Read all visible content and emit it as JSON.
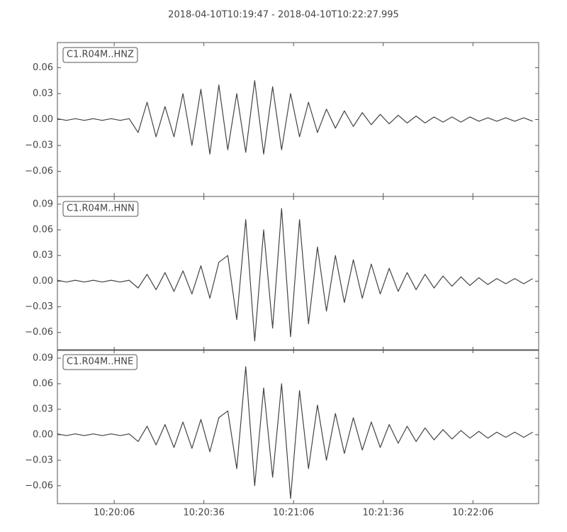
{
  "title": "2018-04-10T10:19:47  -  2018-04-10T10:22:27.995",
  "xlim": [
    "10:19:47",
    "10:22:27.995"
  ],
  "xticks": [
    "10:20:06",
    "10:20:36",
    "10:21:06",
    "10:21:36",
    "10:22:06"
  ],
  "chart_data": [
    {
      "type": "line",
      "label": "C1.R04M..HNZ",
      "color": "#444444",
      "ylim": [
        -0.089,
        0.089
      ],
      "yticks": [
        {
          "value": -0.06,
          "label": "−0.06"
        },
        {
          "value": -0.03,
          "label": "−0.03"
        },
        {
          "value": 0,
          "label": "0.00"
        },
        {
          "value": 0.03,
          "label": "0.03"
        },
        {
          "value": 0.06,
          "label": "0.06"
        }
      ],
      "x": [
        "10:19:47",
        "10:19:50",
        "10:19:53",
        "10:19:56",
        "10:19:59",
        "10:20:02",
        "10:20:05",
        "10:20:08",
        "10:20:11",
        "10:20:14",
        "10:20:17",
        "10:20:20",
        "10:20:23",
        "10:20:26",
        "10:20:29",
        "10:20:32",
        "10:20:35",
        "10:20:38",
        "10:20:41",
        "10:20:44",
        "10:20:47",
        "10:20:50",
        "10:20:53",
        "10:20:56",
        "10:20:59",
        "10:21:02",
        "10:21:05",
        "10:21:08",
        "10:21:11",
        "10:21:14",
        "10:21:17",
        "10:21:20",
        "10:21:23",
        "10:21:26",
        "10:21:29",
        "10:21:32",
        "10:21:35",
        "10:21:38",
        "10:21:41",
        "10:21:44",
        "10:21:47",
        "10:21:50",
        "10:21:53",
        "10:21:56",
        "10:21:59",
        "10:22:02",
        "10:22:05",
        "10:22:08",
        "10:22:11",
        "10:22:14",
        "10:22:17",
        "10:22:20",
        "10:22:23",
        "10:22:26"
      ],
      "values": [
        0.001,
        -0.001,
        0.001,
        -0.001,
        0.001,
        -0.001,
        0.001,
        -0.001,
        0.001,
        -0.015,
        0.02,
        -0.02,
        0.015,
        -0.02,
        0.03,
        -0.03,
        0.035,
        -0.04,
        0.04,
        -0.035,
        0.03,
        -0.038,
        0.045,
        -0.04,
        0.038,
        -0.035,
        0.03,
        -0.02,
        0.02,
        -0.015,
        0.012,
        -0.01,
        0.01,
        -0.008,
        0.008,
        -0.006,
        0.006,
        -0.005,
        0.005,
        -0.004,
        0.004,
        -0.004,
        0.003,
        -0.003,
        0.003,
        -0.003,
        0.003,
        -0.002,
        0.002,
        -0.002,
        0.002,
        -0.002,
        0.002,
        -0.002
      ]
    },
    {
      "type": "line",
      "label": "C1.R04M..HNN",
      "color": "#444444",
      "ylim": [
        -0.081,
        0.099
      ],
      "yticks": [
        {
          "value": -0.06,
          "label": "−0.06"
        },
        {
          "value": -0.03,
          "label": "−0.03"
        },
        {
          "value": 0,
          "label": "0.00"
        },
        {
          "value": 0.03,
          "label": "0.03"
        },
        {
          "value": 0.06,
          "label": "0.06"
        },
        {
          "value": 0.09,
          "label": "0.09"
        }
      ],
      "x": [
        "10:19:47",
        "10:19:50",
        "10:19:53",
        "10:19:56",
        "10:19:59",
        "10:20:02",
        "10:20:05",
        "10:20:08",
        "10:20:11",
        "10:20:14",
        "10:20:17",
        "10:20:20",
        "10:20:23",
        "10:20:26",
        "10:20:29",
        "10:20:32",
        "10:20:35",
        "10:20:38",
        "10:20:41",
        "10:20:44",
        "10:20:47",
        "10:20:50",
        "10:20:53",
        "10:20:56",
        "10:20:59",
        "10:21:02",
        "10:21:05",
        "10:21:08",
        "10:21:11",
        "10:21:14",
        "10:21:17",
        "10:21:20",
        "10:21:23",
        "10:21:26",
        "10:21:29",
        "10:21:32",
        "10:21:35",
        "10:21:38",
        "10:21:41",
        "10:21:44",
        "10:21:47",
        "10:21:50",
        "10:21:53",
        "10:21:56",
        "10:21:59",
        "10:22:02",
        "10:22:05",
        "10:22:08",
        "10:22:11",
        "10:22:14",
        "10:22:17",
        "10:22:20",
        "10:22:23",
        "10:22:26"
      ],
      "values": [
        0.001,
        -0.001,
        0.001,
        -0.001,
        0.001,
        -0.001,
        0.001,
        -0.001,
        0.001,
        -0.008,
        0.008,
        -0.01,
        0.01,
        -0.012,
        0.012,
        -0.015,
        0.018,
        -0.02,
        0.022,
        0.03,
        -0.045,
        0.072,
        -0.07,
        0.06,
        -0.055,
        0.085,
        -0.065,
        0.072,
        -0.05,
        0.04,
        -0.035,
        0.03,
        -0.025,
        0.025,
        -0.02,
        0.02,
        -0.015,
        0.015,
        -0.012,
        0.01,
        -0.01,
        0.008,
        -0.008,
        0.006,
        -0.006,
        0.005,
        -0.005,
        0.004,
        -0.004,
        0.003,
        -0.003,
        0.003,
        -0.003,
        0.003
      ]
    },
    {
      "type": "line",
      "label": "C1.R04M..HNE",
      "color": "#444444",
      "ylim": [
        -0.081,
        0.1
      ],
      "yticks": [
        {
          "value": -0.06,
          "label": "−0.06"
        },
        {
          "value": -0.03,
          "label": "−0.03"
        },
        {
          "value": 0,
          "label": "0.00"
        },
        {
          "value": 0.03,
          "label": "0.03"
        },
        {
          "value": 0.06,
          "label": "0.06"
        },
        {
          "value": 0.09,
          "label": "0.09"
        }
      ],
      "x": [
        "10:19:47",
        "10:19:50",
        "10:19:53",
        "10:19:56",
        "10:19:59",
        "10:20:02",
        "10:20:05",
        "10:20:08",
        "10:20:11",
        "10:20:14",
        "10:20:17",
        "10:20:20",
        "10:20:23",
        "10:20:26",
        "10:20:29",
        "10:20:32",
        "10:20:35",
        "10:20:38",
        "10:20:41",
        "10:20:44",
        "10:20:47",
        "10:20:50",
        "10:20:53",
        "10:20:56",
        "10:20:59",
        "10:21:02",
        "10:21:05",
        "10:21:08",
        "10:21:11",
        "10:21:14",
        "10:21:17",
        "10:21:20",
        "10:21:23",
        "10:21:26",
        "10:21:29",
        "10:21:32",
        "10:21:35",
        "10:21:38",
        "10:21:41",
        "10:21:44",
        "10:21:47",
        "10:21:50",
        "10:21:53",
        "10:21:56",
        "10:21:59",
        "10:22:02",
        "10:22:05",
        "10:22:08",
        "10:22:11",
        "10:22:14",
        "10:22:17",
        "10:22:20",
        "10:22:23",
        "10:22:26"
      ],
      "values": [
        0.001,
        -0.001,
        0.001,
        -0.001,
        0.001,
        -0.001,
        0.001,
        -0.001,
        0.001,
        -0.008,
        0.01,
        -0.012,
        0.012,
        -0.015,
        0.015,
        -0.016,
        0.018,
        -0.02,
        0.02,
        0.028,
        -0.04,
        0.08,
        -0.06,
        0.055,
        -0.05,
        0.06,
        -0.075,
        0.052,
        -0.04,
        0.035,
        -0.03,
        0.025,
        -0.022,
        0.02,
        -0.018,
        0.015,
        -0.015,
        0.012,
        -0.01,
        0.01,
        -0.008,
        0.008,
        -0.006,
        0.006,
        -0.005,
        0.005,
        -0.004,
        0.004,
        -0.004,
        0.003,
        -0.003,
        0.003,
        -0.003,
        0.003
      ]
    }
  ]
}
